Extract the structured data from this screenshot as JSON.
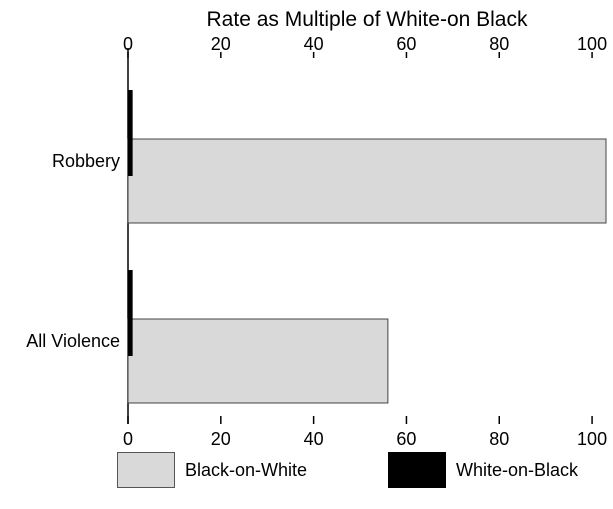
{
  "chart_data": {
    "type": "bar",
    "orientation": "horizontal",
    "title": "Rate as Multiple of White-on Black",
    "xlabel": "",
    "ylabel": "",
    "categories": [
      "Robbery",
      "All Violence"
    ],
    "series": [
      {
        "name": "White-on-Black",
        "color": "#000000",
        "values": [
          1,
          1
        ]
      },
      {
        "name": "Black-on-White",
        "color": "#d9d9d9",
        "values": [
          103,
          56
        ]
      }
    ],
    "xlim": [
      0,
      103
    ],
    "xticks": [
      "0",
      "20",
      "40",
      "60",
      "80",
      "100"
    ],
    "xtick_values": [
      0,
      20,
      40,
      60,
      80,
      100
    ],
    "tick_labels_top_and_bottom": true,
    "grid": false,
    "legend_position": "bottom"
  },
  "legend": {
    "items": [
      {
        "label": "Black-on-White",
        "color": "#d9d9d9"
      },
      {
        "label": "White-on-Black",
        "color": "#000000"
      }
    ]
  }
}
